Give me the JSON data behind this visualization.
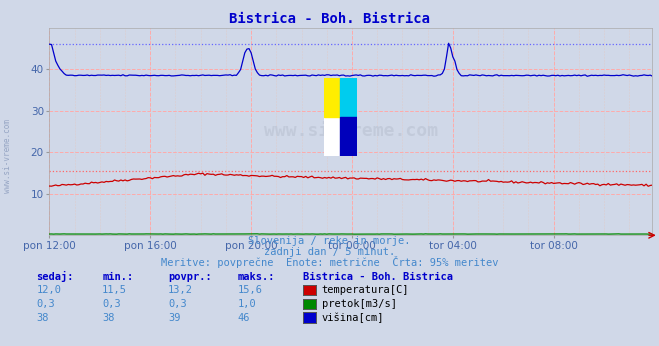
{
  "title": "Bistrica - Boh. Bistrica",
  "title_color": "#0000cc",
  "background_color": "#d0d8e8",
  "plot_bg_color": "#d0d8e8",
  "grid_color_major": "#ffaaaa",
  "grid_color_minor": "#ddcccc",
  "xlabel_color": "#4466aa",
  "x_tick_labels": [
    "pon 12:00",
    "pon 16:00",
    "pon 20:00",
    "tor 00:00",
    "tor 04:00",
    "tor 08:00"
  ],
  "x_tick_positions": [
    0,
    48,
    96,
    144,
    192,
    240
  ],
  "y_min": 0,
  "y_max": 50,
  "y_ticks": [
    10,
    20,
    30,
    40
  ],
  "total_points": 288,
  "temp_color": "#cc0000",
  "pretok_color": "#008800",
  "visina_color": "#0000cc",
  "dotted_temp_color": "#ff6666",
  "dotted_visina_color": "#6666ff",
  "temp_max": 15.6,
  "visina_max": 46,
  "footer_line1": "Slovenija / reke in morje.",
  "footer_line2": "zadnji dan / 5 minut.",
  "footer_line3": "Meritve: povprečne  Enote: metrične  Črta: 95% meritev",
  "footer_color": "#4488cc",
  "table_headers": [
    "sedaj:",
    "min.:",
    "povpr.:",
    "maks.:"
  ],
  "table_header_color": "#0000cc",
  "table_rows": [
    {
      "sedaj": "12,0",
      "min": "11,5",
      "povpr": "13,2",
      "maks": "15,6",
      "label": "temperatura[C]",
      "color": "#cc0000"
    },
    {
      "sedaj": "0,3",
      "min": "0,3",
      "povpr": "0,3",
      "maks": "1,0",
      "label": "pretok[m3/s]",
      "color": "#008800"
    },
    {
      "sedaj": "38",
      "min": "38",
      "povpr": "39",
      "maks": "46",
      "label": "višina[cm]",
      "color": "#0000cc"
    }
  ],
  "table_station": "Bistrica - Boh. Bistrica",
  "table_value_color": "#4488cc",
  "watermark_text": "www.si-vreme.com",
  "logo_colors": [
    "#ffee00",
    "#00ccee",
    "#0000bb"
  ]
}
